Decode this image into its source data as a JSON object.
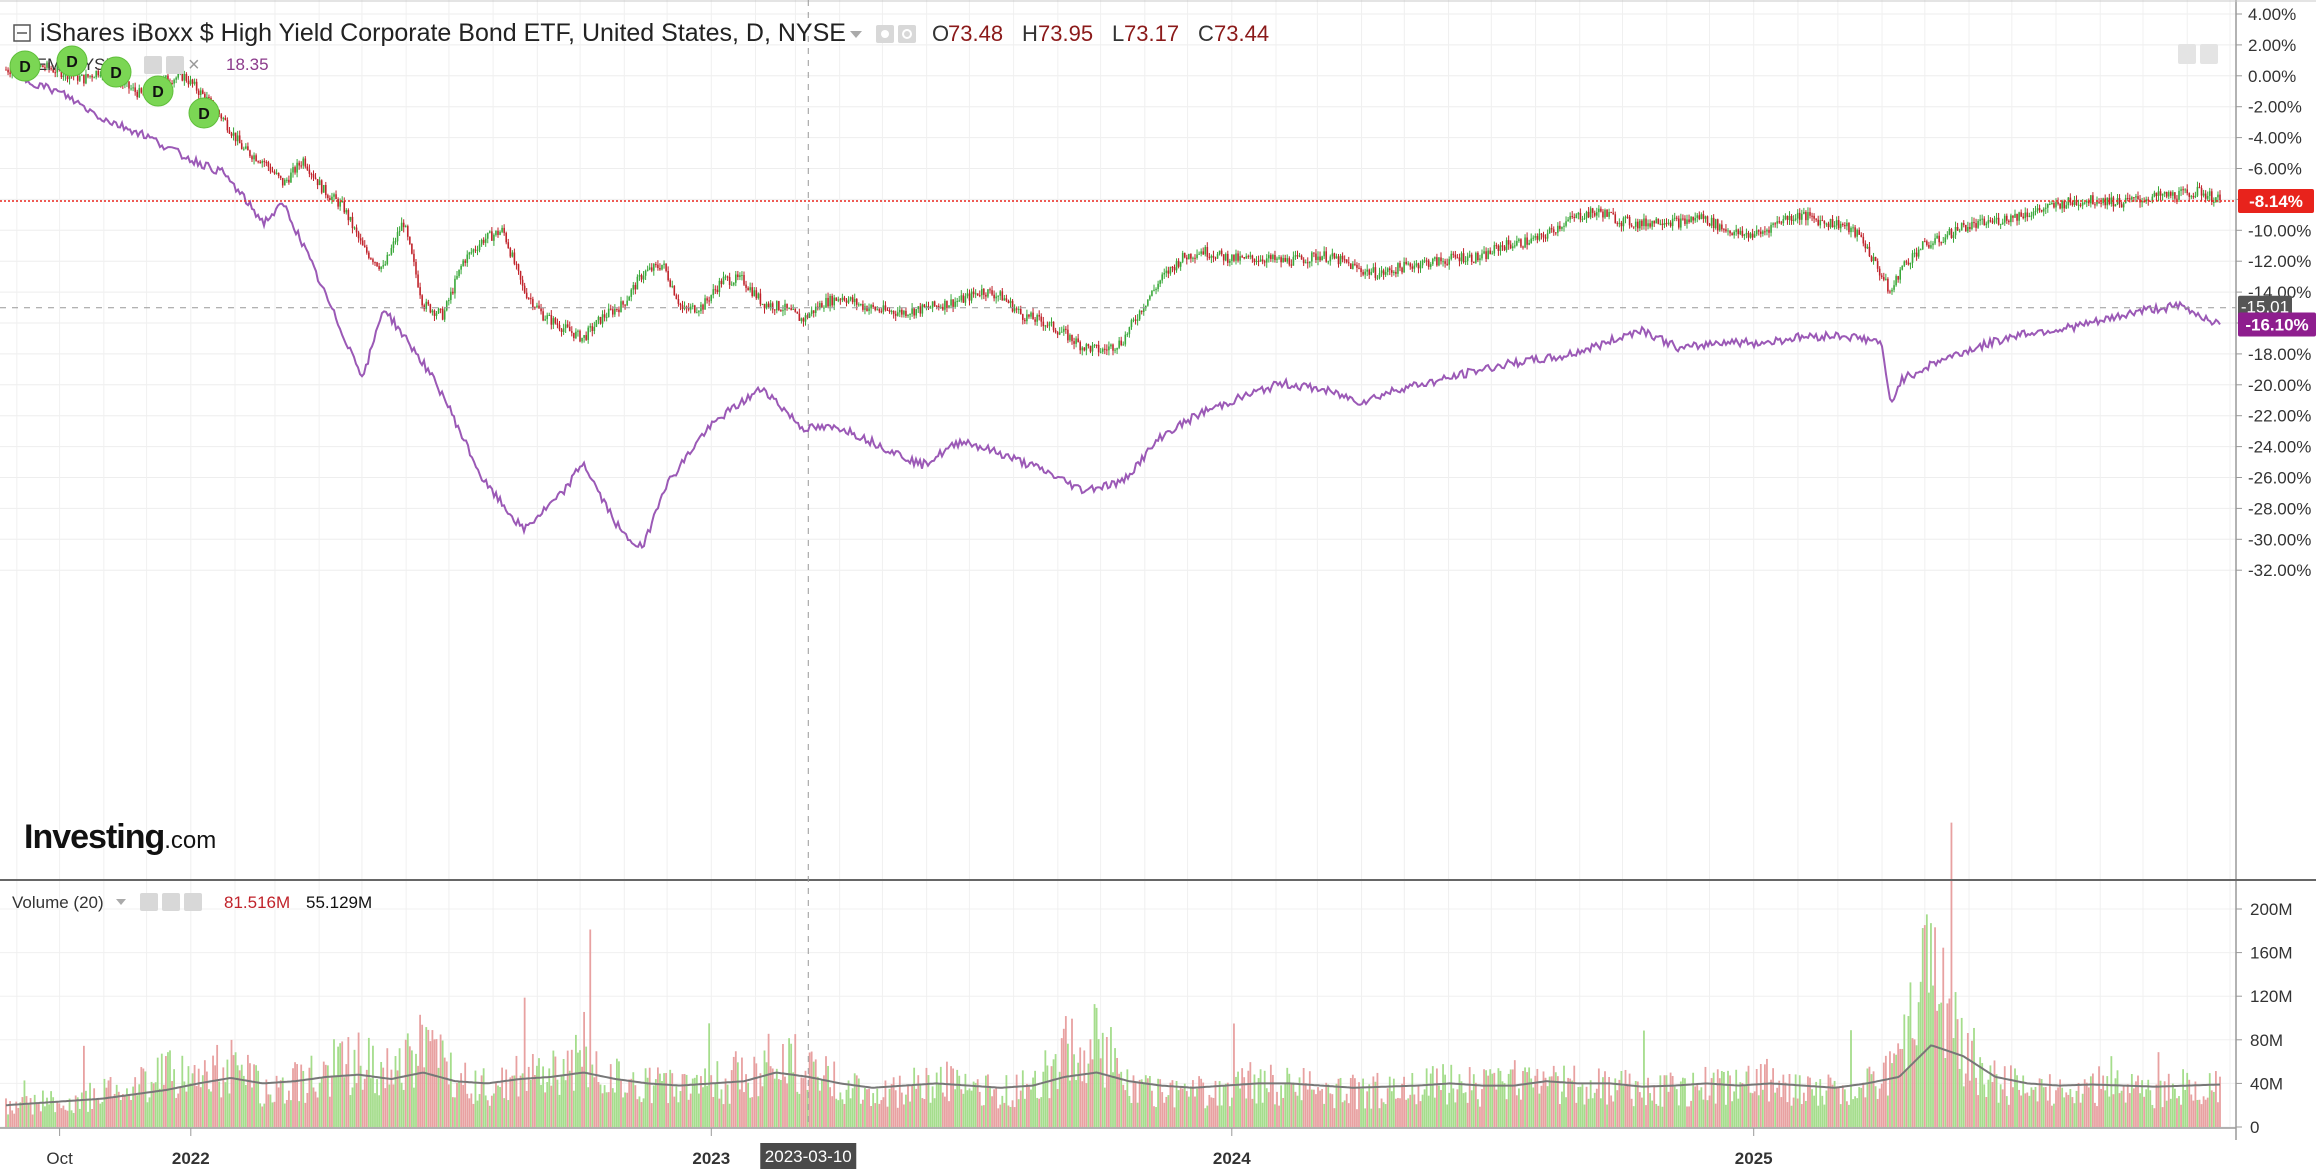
{
  "header": {
    "title": "iShares iBoxx $ High Yield Corporate Bond ETF, United States, D, NYSE",
    "ohlc": [
      {
        "key": "O",
        "value": "73.48"
      },
      {
        "key": "H",
        "value": "73.95"
      },
      {
        "key": "L",
        "value": "73.17"
      },
      {
        "key": "C",
        "value": "73.44"
      }
    ]
  },
  "compare": {
    "label": "HYEM, NYSE",
    "value": "18.35",
    "color": "#8b3a8b"
  },
  "dividend_marker": "D",
  "logo": {
    "bold": "Investing",
    "suffix": ".com"
  },
  "volume": {
    "label": "Volume (20)",
    "value_1": "81.516M",
    "value_2": "55.129M"
  },
  "crosshair_date": "2023-03-10",
  "badges": {
    "main_close": "-8.14%",
    "compare_close": "-16.10%",
    "crosshair_value": "-15.01"
  },
  "colors": {
    "up": "#3aa83a",
    "down": "#c0222a",
    "compare": "#9b59b6",
    "vol_up": "#a5dd8c",
    "vol_down": "#e8a1a1",
    "badge_red": "#e8231c",
    "badge_purple": "#8e1e8e"
  },
  "chart_data": {
    "type": "line",
    "x_axis_labels": [
      "Oct",
      "2022",
      "2023",
      "2024",
      "2025"
    ],
    "y_axis_price_ticks": [
      "4.00%",
      "2.00%",
      "0.00%",
      "-2.00%",
      "-4.00%",
      "-6.00%",
      "-8.00%",
      "-10.00%",
      "-12.00%",
      "-14.00%",
      "-16.00%",
      "-18.00%",
      "-20.00%",
      "-22.00%",
      "-24.00%",
      "-26.00%",
      "-28.00%",
      "-30.00%",
      "-32.00%"
    ],
    "y_axis_volume_ticks": [
      "200M",
      "160M",
      "120M",
      "80M",
      "40M",
      "0"
    ],
    "ylim_pct": [
      -34,
      4
    ],
    "ylim_volume": [
      0,
      200
    ],
    "series": [
      {
        "type": "candlestick",
        "x": [
          "2021-09-06",
          "2021-09-20",
          "2021-10-04",
          "2021-10-18",
          "2021-11-01",
          "2021-11-15",
          "2021-11-29",
          "2021-12-13",
          "2021-12-27",
          "2022-01-10",
          "2022-01-24",
          "2022-02-07",
          "2022-02-21",
          "2022-03-07",
          "2022-03-21",
          "2022-04-04",
          "2022-04-18",
          "2022-05-02",
          "2022-05-16",
          "2022-05-30",
          "2022-06-13",
          "2022-06-27",
          "2022-07-11",
          "2022-07-25",
          "2022-08-08",
          "2022-08-22",
          "2022-09-05",
          "2022-09-19",
          "2022-10-03",
          "2022-10-17",
          "2022-10-31",
          "2022-11-14",
          "2022-11-28",
          "2022-12-12",
          "2022-12-26",
          "2023-01-09",
          "2023-01-23",
          "2023-02-06",
          "2023-02-20",
          "2023-03-06",
          "2023-03-20",
          "2023-04-03",
          "2023-04-17",
          "2023-05-01",
          "2023-05-15",
          "2023-05-29",
          "2023-06-12",
          "2023-06-26",
          "2023-07-10",
          "2023-07-24",
          "2023-08-07",
          "2023-08-21",
          "2023-09-04",
          "2023-09-18",
          "2023-10-02",
          "2023-10-16",
          "2023-10-30",
          "2023-11-13",
          "2023-11-27",
          "2023-12-11",
          "2023-12-25",
          "2024-01-08",
          "2024-01-22",
          "2024-02-05",
          "2024-02-19",
          "2024-03-04",
          "2024-03-18",
          "2024-04-01",
          "2024-04-15",
          "2024-04-29",
          "2024-05-13",
          "2024-05-27",
          "2024-06-10",
          "2024-06-24",
          "2024-07-08",
          "2024-07-22",
          "2024-08-05",
          "2024-08-19",
          "2024-09-02",
          "2024-09-16",
          "2024-09-30",
          "2024-10-14",
          "2024-10-28",
          "2024-11-11",
          "2024-11-25",
          "2024-12-09",
          "2024-12-23",
          "2025-01-06",
          "2025-01-20",
          "2025-02-03",
          "2025-02-17",
          "2025-03-03",
          "2025-03-17",
          "2025-03-31",
          "2025-04-07",
          "2025-04-14",
          "2025-04-28",
          "2025-05-12",
          "2025-05-26",
          "2025-06-09",
          "2025-06-23",
          "2025-07-07",
          "2025-07-21",
          "2025-08-04",
          "2025-08-18",
          "2025-09-01",
          "2025-09-15",
          "2025-09-29",
          "2025-10-13",
          "2025-10-27",
          "2025-11-10",
          "2025-11-24"
        ],
        "close_pct": [
          0.4,
          0.6,
          0.2,
          -0.2,
          0.5,
          -0.6,
          -1.3,
          -0.3,
          0.0,
          -1.3,
          -2.8,
          -4.8,
          -5.5,
          -7.0,
          -5.4,
          -7.4,
          -8.5,
          -11.2,
          -12.5,
          -9.4,
          -14.8,
          -15.5,
          -12.0,
          -10.6,
          -10.0,
          -13.8,
          -15.5,
          -16.3,
          -17.0,
          -15.6,
          -14.8,
          -12.8,
          -12.2,
          -15.2,
          -14.9,
          -13.2,
          -13.2,
          -14.7,
          -15.0,
          -15.8,
          -14.7,
          -14.3,
          -14.9,
          -15.2,
          -15.3,
          -15.1,
          -14.8,
          -14.5,
          -13.9,
          -14.3,
          -15.5,
          -15.9,
          -16.6,
          -17.5,
          -17.8,
          -17.2,
          -15.0,
          -13.1,
          -11.8,
          -11.3,
          -11.7,
          -11.9,
          -11.8,
          -12.0,
          -11.9,
          -11.6,
          -12.0,
          -12.6,
          -12.8,
          -12.4,
          -12.1,
          -12.0,
          -11.7,
          -11.8,
          -11.0,
          -10.8,
          -10.5,
          -9.6,
          -9.0,
          -8.8,
          -9.4,
          -9.6,
          -9.3,
          -9.5,
          -9.1,
          -9.8,
          -10.3,
          -10.2,
          -9.3,
          -9.0,
          -9.4,
          -9.6,
          -10.4,
          -12.8,
          -14.1,
          -12.5,
          -11.1,
          -10.6,
          -9.8,
          -9.6,
          -9.3,
          -9.0,
          -8.7,
          -8.3,
          -8.1,
          -8.0,
          -8.2,
          -8.0,
          -7.8,
          -7.7,
          -7.5,
          -8.1
        ]
      },
      {
        "name": "HYEM, NYSE",
        "type": "line",
        "x": [
          "2021-09-06",
          "2021-10-04",
          "2021-11-01",
          "2021-11-29",
          "2021-12-27",
          "2022-01-24",
          "2022-02-21",
          "2022-03-07",
          "2022-03-21",
          "2022-04-18",
          "2022-05-02",
          "2022-05-16",
          "2022-06-13",
          "2022-06-27",
          "2022-07-25",
          "2022-08-22",
          "2022-09-19",
          "2022-10-03",
          "2022-10-17",
          "2022-10-31",
          "2022-11-14",
          "2022-11-28",
          "2022-12-26",
          "2023-01-09",
          "2023-02-06",
          "2023-03-06",
          "2023-04-03",
          "2023-05-01",
          "2023-05-29",
          "2023-06-26",
          "2023-07-24",
          "2023-08-21",
          "2023-09-18",
          "2023-10-16",
          "2023-11-13",
          "2023-12-11",
          "2024-01-08",
          "2024-02-05",
          "2024-03-04",
          "2024-04-01",
          "2024-04-29",
          "2024-05-27",
          "2024-06-24",
          "2024-07-22",
          "2024-08-19",
          "2024-09-16",
          "2024-10-14",
          "2024-11-11",
          "2024-12-09",
          "2025-01-06",
          "2025-02-03",
          "2025-03-03",
          "2025-03-31",
          "2025-04-07",
          "2025-04-14",
          "2025-05-12",
          "2025-06-09",
          "2025-07-07",
          "2025-08-04",
          "2025-09-01",
          "2025-09-29",
          "2025-10-27",
          "2025-11-24"
        ],
        "values_pct": [
          -0.2,
          -1.2,
          -2.8,
          -3.8,
          -5.2,
          -6.3,
          -9.5,
          -8.3,
          -11.0,
          -16.8,
          -19.5,
          -15.0,
          -18.6,
          -20.7,
          -26.2,
          -29.4,
          -27.0,
          -25.0,
          -27.5,
          -29.7,
          -30.6,
          -26.8,
          -23.2,
          -22.0,
          -20.2,
          -22.8,
          -22.8,
          -24.0,
          -25.2,
          -23.6,
          -24.5,
          -25.5,
          -26.8,
          -26.3,
          -23.3,
          -21.8,
          -20.8,
          -19.9,
          -20.3,
          -21.1,
          -20.2,
          -19.7,
          -19.0,
          -18.5,
          -18.2,
          -17.4,
          -16.4,
          -17.7,
          -17.2,
          -17.3,
          -16.9,
          -16.8,
          -17.2,
          -21.3,
          -19.7,
          -18.4,
          -17.5,
          -16.7,
          -16.4,
          -15.9,
          -15.2,
          -14.9,
          -16.1
        ]
      }
    ],
    "volume_pattern_M": [
      20,
      26,
      24,
      34,
      40,
      55,
      48,
      62,
      38,
      44,
      58,
      66,
      52,
      84,
      46,
      40,
      52,
      60,
      70,
      48,
      42,
      38,
      44,
      50,
      70,
      60,
      42,
      34,
      40,
      48,
      38,
      36,
      40,
      75,
      88,
      45,
      36,
      34,
      40,
      46,
      42,
      38,
      36,
      38,
      40,
      44,
      40,
      40,
      48,
      44,
      42,
      36,
      38,
      44,
      40,
      48,
      38,
      36,
      46,
      60,
      180,
      80,
      46,
      40,
      38,
      42,
      40,
      38,
      40,
      42
    ],
    "volume_ma_M": [
      20,
      22,
      24,
      26,
      30,
      34,
      40,
      45,
      40,
      42,
      46,
      48,
      44,
      50,
      42,
      40,
      44,
      46,
      50,
      44,
      40,
      38,
      40,
      42,
      50,
      46,
      40,
      36,
      38,
      40,
      38,
      36,
      38,
      46,
      50,
      42,
      38,
      36,
      38,
      40,
      40,
      38,
      36,
      37,
      38,
      40,
      38,
      38,
      42,
      40,
      40,
      37,
      38,
      40,
      38,
      40,
      38,
      36,
      40,
      46,
      75,
      65,
      46,
      40,
      38,
      39,
      38,
      37,
      38,
      39
    ]
  }
}
